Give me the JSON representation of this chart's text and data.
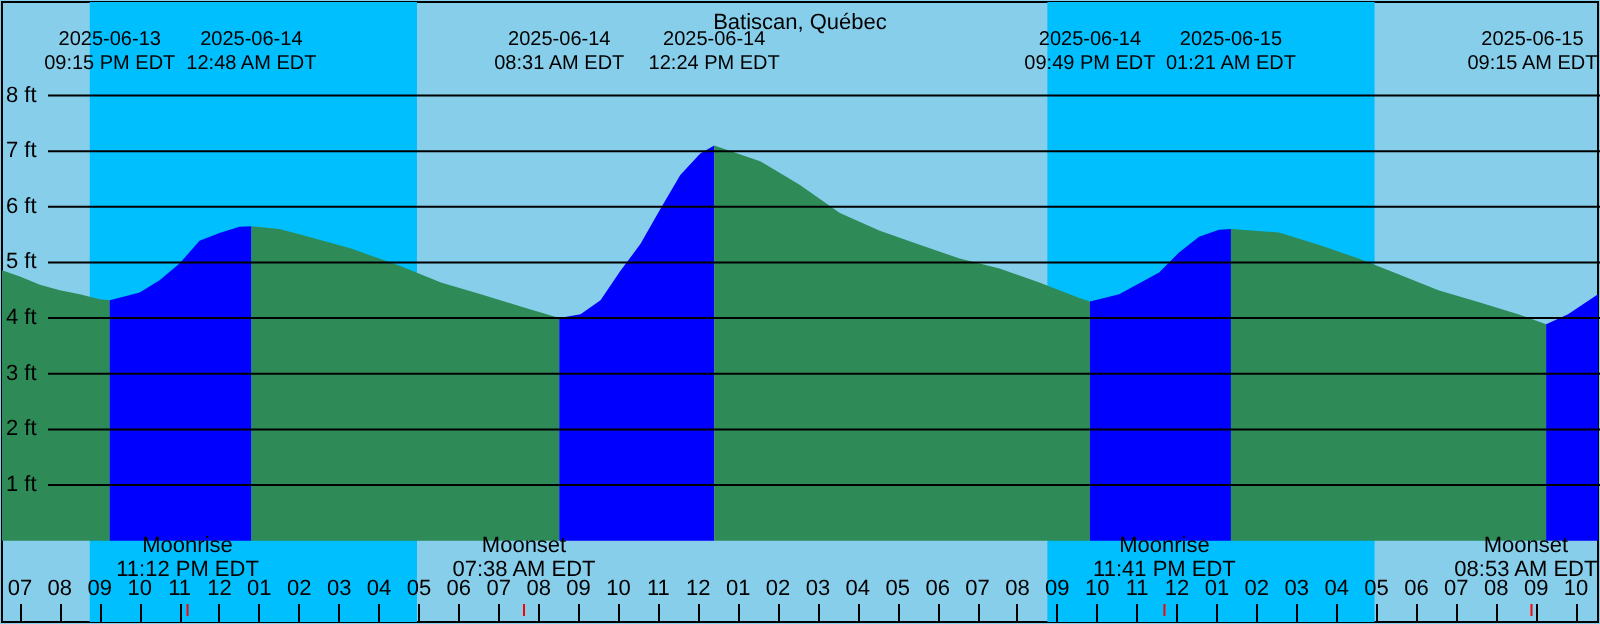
{
  "chart_data": {
    "type": "area",
    "title": "Batiscan, Québec",
    "xlim": [
      "2025-06-13T18:33",
      "2025-06-15T10:33"
    ],
    "xticks": [
      {
        "value": "2025-06-13T19:00",
        "label": "07"
      },
      {
        "value": "2025-06-13T20:00",
        "label": "08"
      },
      {
        "value": "2025-06-13T21:00",
        "label": "09"
      },
      {
        "value": "2025-06-13T22:00",
        "label": "10"
      },
      {
        "value": "2025-06-13T23:00",
        "label": "11"
      },
      {
        "value": "2025-06-14T00:00",
        "label": "12"
      },
      {
        "value": "2025-06-14T01:00",
        "label": "01"
      },
      {
        "value": "2025-06-14T02:00",
        "label": "02"
      },
      {
        "value": "2025-06-14T03:00",
        "label": "03"
      },
      {
        "value": "2025-06-14T04:00",
        "label": "04"
      },
      {
        "value": "2025-06-14T05:00",
        "label": "05"
      },
      {
        "value": "2025-06-14T06:00",
        "label": "06"
      },
      {
        "value": "2025-06-14T07:00",
        "label": "07"
      },
      {
        "value": "2025-06-14T08:00",
        "label": "08"
      },
      {
        "value": "2025-06-14T09:00",
        "label": "09"
      },
      {
        "value": "2025-06-14T10:00",
        "label": "10"
      },
      {
        "value": "2025-06-14T11:00",
        "label": "11"
      },
      {
        "value": "2025-06-14T12:00",
        "label": "12"
      },
      {
        "value": "2025-06-14T13:00",
        "label": "01"
      },
      {
        "value": "2025-06-14T14:00",
        "label": "02"
      },
      {
        "value": "2025-06-14T15:00",
        "label": "03"
      },
      {
        "value": "2025-06-14T16:00",
        "label": "04"
      },
      {
        "value": "2025-06-14T17:00",
        "label": "05"
      },
      {
        "value": "2025-06-14T18:00",
        "label": "06"
      },
      {
        "value": "2025-06-14T19:00",
        "label": "07"
      },
      {
        "value": "2025-06-14T20:00",
        "label": "08"
      },
      {
        "value": "2025-06-14T21:00",
        "label": "09"
      },
      {
        "value": "2025-06-14T22:00",
        "label": "10"
      },
      {
        "value": "2025-06-14T23:00",
        "label": "11"
      },
      {
        "value": "2025-06-15T00:00",
        "label": "12"
      },
      {
        "value": "2025-06-15T01:00",
        "label": "01"
      },
      {
        "value": "2025-06-15T02:00",
        "label": "02"
      },
      {
        "value": "2025-06-15T03:00",
        "label": "03"
      },
      {
        "value": "2025-06-15T04:00",
        "label": "04"
      },
      {
        "value": "2025-06-15T05:00",
        "label": "05"
      },
      {
        "value": "2025-06-15T06:00",
        "label": "06"
      },
      {
        "value": "2025-06-15T07:00",
        "label": "07"
      },
      {
        "value": "2025-06-15T08:00",
        "label": "08"
      },
      {
        "value": "2025-06-15T09:00",
        "label": "09"
      },
      {
        "value": "2025-06-15T10:00",
        "label": "10"
      }
    ],
    "ylim": [
      -1.46,
      9.68
    ],
    "yticks": [
      {
        "value": 1,
        "label": "1 ft"
      },
      {
        "value": 2,
        "label": "2 ft"
      },
      {
        "value": 3,
        "label": "3 ft"
      },
      {
        "value": 4,
        "label": "4 ft"
      },
      {
        "value": 5,
        "label": "5 ft"
      },
      {
        "value": 6,
        "label": "6 ft"
      },
      {
        "value": 7,
        "label": "7 ft"
      },
      {
        "value": 8,
        "label": "8 ft"
      }
    ],
    "grid": "y",
    "series": [
      {
        "color": "#2e8b57",
        "x": [
          "2025-06-13T18:33",
          "2025-06-13T19:00",
          "2025-06-13T19:30",
          "2025-06-13T20:00",
          "2025-06-13T20:30",
          "2025-06-13T21:00",
          "2025-06-13T21:15"
        ],
        "values": [
          4.86,
          4.75,
          4.6,
          4.5,
          4.43,
          4.34,
          4.32
        ]
      },
      {
        "color": "#0000ff",
        "x": [
          "2025-06-13T21:15",
          "2025-06-13T22:00",
          "2025-06-13T22:30",
          "2025-06-13T23:00",
          "2025-06-13T23:30",
          "2025-06-14T00:00",
          "2025-06-14T00:30",
          "2025-06-14T00:48"
        ],
        "values": [
          4.32,
          4.46,
          4.68,
          4.98,
          5.39,
          5.53,
          5.64,
          5.65
        ]
      },
      {
        "color": "#2e8b57",
        "x": [
          "2025-06-14T00:48",
          "2025-06-14T01:30",
          "2025-06-14T02:03",
          "2025-06-14T03:18",
          "2025-06-14T04:33",
          "2025-06-14T05:33",
          "2025-06-14T06:33",
          "2025-06-14T07:33",
          "2025-06-14T08:31"
        ],
        "values": [
          5.65,
          5.6,
          5.5,
          5.25,
          4.93,
          4.64,
          4.43,
          4.21,
          4.0
        ]
      },
      {
        "color": "#0000ff",
        "x": [
          "2025-06-14T08:31",
          "2025-06-14T09:03",
          "2025-06-14T09:33",
          "2025-06-14T10:03",
          "2025-06-14T10:33",
          "2025-06-14T11:03",
          "2025-06-14T11:33",
          "2025-06-14T12:03",
          "2025-06-14T12:24"
        ],
        "values": [
          4.0,
          4.07,
          4.32,
          4.85,
          5.33,
          5.96,
          6.57,
          6.96,
          7.1
        ]
      },
      {
        "color": "#2e8b57",
        "x": [
          "2025-06-14T12:24",
          "2025-06-14T13:33",
          "2025-06-14T14:33",
          "2025-06-14T15:33",
          "2025-06-14T16:33",
          "2025-06-14T17:33",
          "2025-06-14T18:33",
          "2025-06-14T19:33",
          "2025-06-14T20:33",
          "2025-06-14T21:33",
          "2025-06-14T21:49"
        ],
        "values": [
          7.1,
          6.82,
          6.39,
          5.89,
          5.57,
          5.32,
          5.07,
          4.89,
          4.64,
          4.36,
          4.3
        ]
      },
      {
        "color": "#0000ff",
        "x": [
          "2025-06-14T21:49",
          "2025-06-14T22:33",
          "2025-06-14T23:33",
          "2025-06-15T00:03",
          "2025-06-15T00:33",
          "2025-06-15T01:03",
          "2025-06-15T01:21"
        ],
        "values": [
          4.3,
          4.43,
          4.82,
          5.18,
          5.46,
          5.59,
          5.6
        ]
      },
      {
        "color": "#2e8b57",
        "x": [
          "2025-06-15T01:21",
          "2025-06-15T02:33",
          "2025-06-15T03:33",
          "2025-06-15T04:33",
          "2025-06-15T05:33",
          "2025-06-15T06:33",
          "2025-06-15T07:33",
          "2025-06-15T08:33",
          "2025-06-15T09:15"
        ],
        "values": [
          5.6,
          5.54,
          5.32,
          5.07,
          4.79,
          4.5,
          4.29,
          4.07,
          3.89
        ]
      },
      {
        "color": "#0000ff",
        "x": [
          "2025-06-15T09:15",
          "2025-06-15T09:48",
          "2025-06-15T10:33"
        ],
        "values": [
          3.89,
          4.07,
          4.43
        ]
      }
    ],
    "bands": [
      {
        "axis": "x",
        "from": "2025-06-13T20:45",
        "to": "2025-06-14T04:57",
        "color": "#00bfff"
      },
      {
        "axis": "x",
        "from": "2025-06-14T20:45",
        "to": "2025-06-15T04:57",
        "color": "#00bfff"
      }
    ],
    "ref_lines": [
      {
        "axis": "x",
        "value": "2025-06-13T23:12",
        "label": "Moonrise\n11:12 PM EDT",
        "color": "#ff0000"
      },
      {
        "axis": "x",
        "value": "2025-06-14T07:38",
        "label": "Moonset\n07:38 AM EDT",
        "color": "#ff0000"
      },
      {
        "axis": "x",
        "value": "2025-06-14T23:41",
        "label": "Moonrise\n11:41 PM EDT",
        "color": "#ff0000"
      },
      {
        "axis": "x",
        "value": "2025-06-15T08:53",
        "label": "Moonset\n08:53 AM EDT",
        "color": "#ff0000"
      }
    ],
    "annotations": [
      "2025-06-13\n09:15 PM EDT",
      "2025-06-14\n12:48 AM EDT",
      "2025-06-14\n08:31 AM EDT",
      "2025-06-14\n12:24 PM EDT",
      "2025-06-14\n09:49 PM EDT",
      "2025-06-15\n01:21 AM EDT",
      "2025-06-15\n09:15 AM EDT"
    ]
  }
}
